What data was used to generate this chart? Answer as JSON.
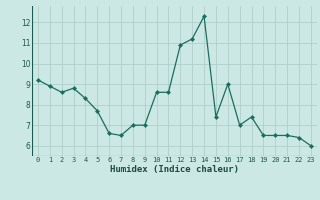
{
  "x": [
    0,
    1,
    2,
    3,
    4,
    5,
    6,
    7,
    8,
    9,
    10,
    11,
    12,
    13,
    14,
    15,
    16,
    17,
    18,
    19,
    20,
    21,
    22,
    23
  ],
  "y": [
    9.2,
    8.9,
    8.6,
    8.8,
    8.3,
    7.7,
    6.6,
    6.5,
    7.0,
    7.0,
    8.6,
    8.6,
    10.9,
    11.2,
    12.3,
    7.4,
    9.0,
    7.0,
    7.4,
    6.5,
    6.5,
    6.5,
    6.4,
    6.0
  ],
  "line_color": "#1a6e5e",
  "marker": "D",
  "marker_size": 2.0,
  "bg_color": "#cce8e4",
  "grid_color": "#b0ceca",
  "xlabel": "Humidex (Indice chaleur)",
  "ylim": [
    5.5,
    12.8
  ],
  "xlim": [
    -0.5,
    23.5
  ],
  "yticks": [
    6,
    7,
    8,
    9,
    10,
    11,
    12
  ],
  "xticks": [
    0,
    1,
    2,
    3,
    4,
    5,
    6,
    7,
    8,
    9,
    10,
    11,
    12,
    13,
    14,
    15,
    16,
    17,
    18,
    19,
    20,
    21,
    22,
    23
  ],
  "tick_label_color": "#1a5a50",
  "xlabel_color": "#1a4a40",
  "xlabel_fontsize": 6.5,
  "xtick_fontsize": 5.0,
  "ytick_fontsize": 5.5
}
